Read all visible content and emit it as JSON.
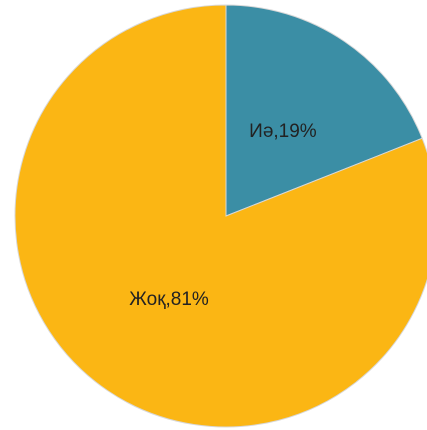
{
  "chart_data": {
    "type": "pie",
    "values": [
      19,
      81
    ],
    "value_labels": [
      "Иә,19%",
      "Жоқ,81%"
    ],
    "colors": [
      "#3b8ea5",
      "#fbb614"
    ]
  }
}
